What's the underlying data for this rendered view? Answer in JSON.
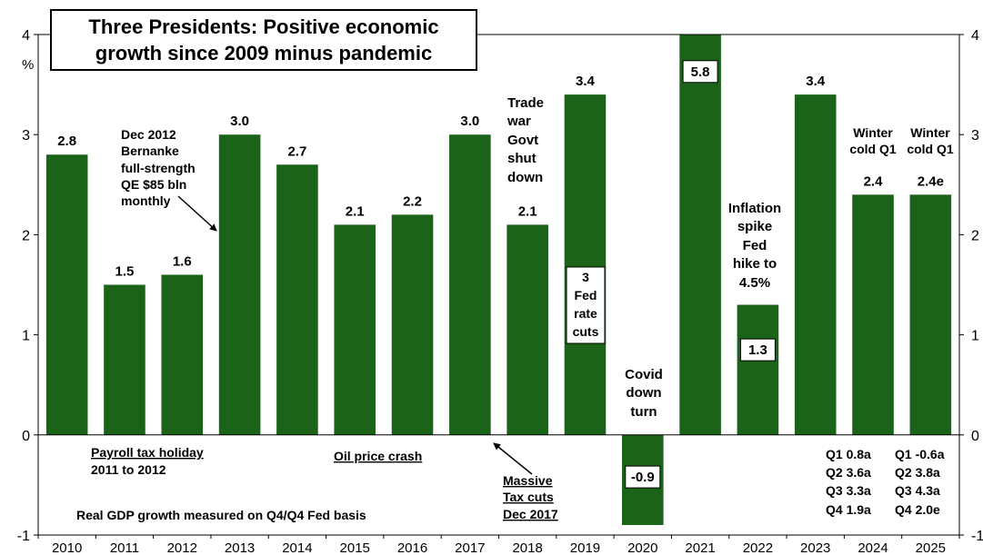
{
  "chart_data": {
    "type": "bar",
    "title_lines": [
      "Three Presidents: Positive economic",
      "growth since 2009 minus pandemic"
    ],
    "ylabel": "%",
    "ylim": [
      -1,
      4
    ],
    "yticks": [
      -1,
      0,
      1,
      2,
      3,
      4
    ],
    "categories": [
      "2010",
      "2011",
      "2012",
      "2013",
      "2014",
      "2015",
      "2016",
      "2017",
      "2018",
      "2019",
      "2020",
      "2021",
      "2022",
      "2023",
      "2024",
      "2025"
    ],
    "values": [
      2.8,
      1.5,
      1.6,
      3.0,
      2.7,
      2.1,
      2.2,
      3.0,
      2.1,
      3.4,
      -0.9,
      5.8,
      1.3,
      3.4,
      2.4,
      2.4
    ],
    "value_labels": [
      "2.8",
      "1.5",
      "1.6",
      "3.0",
      "2.7",
      "2.1",
      "2.2",
      "3.0",
      "2.1",
      "3.4",
      "-0.9",
      "5.8",
      "1.3",
      "3.4",
      "2.4",
      "2.4e"
    ],
    "bar_color": "#1a6318",
    "grid": false,
    "annotations": {
      "qe": [
        "Dec 2012",
        "Bernanke",
        "full-strength",
        "QE $85 bln",
        "monthly"
      ],
      "payroll": [
        "Payroll tax holiday",
        "2011 to 2012"
      ],
      "oil": "Oil price crash",
      "tax": [
        "Massive",
        "Tax cuts",
        "Dec 2017"
      ],
      "trade": [
        "Trade",
        "war",
        "Govt",
        "shut",
        "down"
      ],
      "fed_cuts": [
        "3",
        "Fed",
        "rate",
        "cuts"
      ],
      "covid": [
        "Covid",
        "down",
        "turn"
      ],
      "inflation": [
        "Inflation",
        "spike",
        "Fed",
        "hike to",
        "4.5%"
      ],
      "winter_2024": [
        "Winter",
        "cold Q1"
      ],
      "winter_2025": [
        "Winter",
        "cold Q1"
      ],
      "quarters_2024": [
        "Q1  0.8a",
        "Q2  3.6a",
        "Q3  3.3a",
        "Q4  1.9a"
      ],
      "quarters_2025": [
        "Q1 -0.6a",
        "Q2  3.8a",
        "Q3  4.3a",
        "Q4  2.0e"
      ],
      "footnote": "Real GDP growth measured on Q4/Q4 Fed basis"
    }
  }
}
